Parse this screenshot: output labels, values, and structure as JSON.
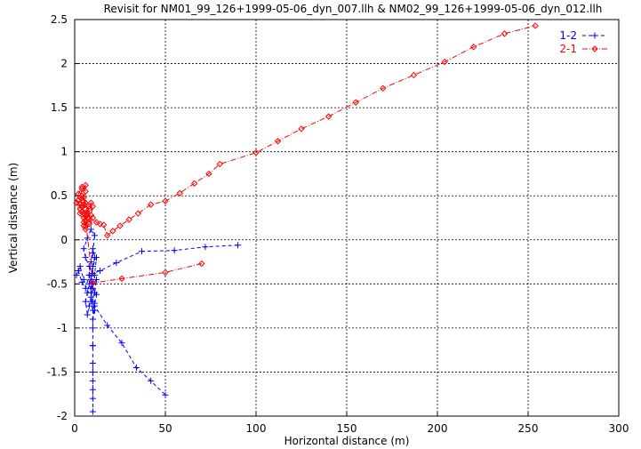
{
  "chart_data": {
    "type": "line",
    "title": "Revisit for NM01_99_126+1999-05-06_dyn_007.llh & NM02_99_126+1999-05-06_dyn_012.llh",
    "xlabel": "Horizontal distance (m)",
    "ylabel": "Vertical distance (m)",
    "xlim": [
      0,
      300
    ],
    "ylim": [
      -2,
      2.5
    ],
    "x_ticks": [
      "0",
      "50",
      "100",
      "150",
      "200",
      "250",
      "300"
    ],
    "y_ticks": [
      "-2",
      "-1.5",
      "-1",
      "-0.5",
      "0",
      "0.5",
      "1",
      "1.5",
      "2",
      "2.5"
    ],
    "x_tick_values": [
      0,
      50,
      100,
      150,
      200,
      250,
      300
    ],
    "y_tick_values": [
      -2,
      -1.5,
      -1,
      -0.5,
      0,
      0.5,
      1,
      1.5,
      2,
      2.5
    ],
    "grid": true,
    "legend_position": "top-right",
    "series": [
      {
        "name": "1-2",
        "color": "#0000ff",
        "marker": "plus",
        "line_style": "dashed",
        "points": [
          [
            90,
            -0.06
          ],
          [
            72,
            -0.08
          ],
          [
            55,
            -0.12
          ],
          [
            37,
            -0.13
          ],
          [
            23,
            -0.26
          ],
          [
            14,
            -0.35
          ],
          [
            10,
            -0.38
          ],
          [
            8,
            -0.3
          ],
          [
            6,
            -0.2
          ],
          [
            5,
            -0.1
          ],
          [
            7,
            0.02
          ],
          [
            9,
            0.12
          ],
          [
            11,
            0.05
          ],
          [
            10,
            -0.15
          ],
          [
            8,
            -0.4
          ],
          [
            6,
            -0.55
          ],
          [
            4,
            -0.48
          ],
          [
            2,
            -0.35
          ],
          [
            1,
            -0.4
          ],
          [
            3,
            -0.3
          ],
          [
            5,
            -0.45
          ],
          [
            7,
            -0.6
          ],
          [
            9,
            -0.55
          ],
          [
            11,
            -0.4
          ],
          [
            12,
            -0.2
          ],
          [
            10,
            -0.3
          ],
          [
            8,
            -0.5
          ],
          [
            6,
            -0.7
          ],
          [
            7,
            -0.85
          ],
          [
            8,
            -0.75
          ],
          [
            9,
            -0.65
          ],
          [
            10,
            -0.5
          ],
          [
            12,
            -0.45
          ],
          [
            11,
            -0.6
          ],
          [
            9,
            -0.7
          ],
          [
            10,
            -0.8
          ],
          [
            11,
            -0.72
          ],
          [
            12,
            -0.62
          ],
          [
            10,
            -0.55
          ],
          [
            9,
            -0.45
          ],
          [
            10,
            -0.3
          ],
          [
            11,
            -0.2
          ],
          [
            10,
            -0.1
          ],
          [
            9,
            -0.25
          ],
          [
            8,
            -0.4
          ],
          [
            9,
            -0.6
          ],
          [
            10,
            -0.7
          ],
          [
            11,
            -0.8
          ],
          [
            10,
            -0.9
          ],
          [
            10,
            -1.0
          ],
          [
            10,
            -1.2
          ],
          [
            10,
            -1.4
          ],
          [
            10,
            -1.6
          ],
          [
            10,
            -1.8
          ],
          [
            10,
            -1.95
          ],
          [
            10,
            -1.7
          ],
          [
            10,
            -1.5
          ],
          [
            10,
            -1.2
          ],
          [
            10,
            -0.9
          ],
          [
            11,
            -0.75
          ],
          [
            18,
            -0.97
          ],
          [
            26,
            -1.17
          ],
          [
            34,
            -1.45
          ],
          [
            42,
            -1.6
          ],
          [
            50,
            -1.76
          ]
        ]
      },
      {
        "name": "2-1",
        "color": "#ff0000",
        "marker": "diamond",
        "line_style": "dash-dot",
        "points": [
          [
            70,
            -0.27
          ],
          [
            50,
            -0.37
          ],
          [
            26,
            -0.44
          ],
          [
            10,
            -0.49
          ],
          [
            5,
            0.4
          ],
          [
            3,
            0.35
          ],
          [
            2,
            0.45
          ],
          [
            4,
            0.5
          ],
          [
            6,
            0.42
          ],
          [
            8,
            0.38
          ],
          [
            7,
            0.3
          ],
          [
            5,
            0.25
          ],
          [
            4,
            0.32
          ],
          [
            3,
            0.4
          ],
          [
            5,
            0.48
          ],
          [
            6,
            0.55
          ],
          [
            4,
            0.6
          ],
          [
            2,
            0.52
          ],
          [
            1,
            0.42
          ],
          [
            3,
            0.3
          ],
          [
            5,
            0.2
          ],
          [
            6,
            0.15
          ],
          [
            7,
            0.25
          ],
          [
            8,
            0.35
          ],
          [
            9,
            0.42
          ],
          [
            10,
            0.38
          ],
          [
            9,
            0.28
          ],
          [
            8,
            0.2
          ],
          [
            7,
            0.28
          ],
          [
            6,
            0.35
          ],
          [
            5,
            0.44
          ],
          [
            6,
            0.62
          ],
          [
            4,
            0.58
          ],
          [
            3,
            0.48
          ],
          [
            4,
            0.38
          ],
          [
            5,
            0.3
          ],
          [
            6,
            0.22
          ],
          [
            5,
            0.16
          ],
          [
            6,
            0.12
          ],
          [
            8,
            0.18
          ],
          [
            10,
            0.25
          ],
          [
            12,
            0.2
          ],
          [
            14,
            0.18
          ],
          [
            16,
            0.17
          ],
          [
            18,
            0.05
          ],
          [
            21,
            0.1
          ],
          [
            25,
            0.16
          ],
          [
            30,
            0.23
          ],
          [
            35,
            0.3
          ],
          [
            42,
            0.4
          ],
          [
            50,
            0.44
          ],
          [
            58,
            0.53
          ],
          [
            66,
            0.64
          ],
          [
            74,
            0.75
          ],
          [
            80,
            0.86
          ],
          [
            100,
            0.99
          ],
          [
            112,
            1.12
          ],
          [
            125,
            1.26
          ],
          [
            140,
            1.4
          ],
          [
            155,
            1.56
          ],
          [
            170,
            1.72
          ],
          [
            187,
            1.87
          ],
          [
            204,
            2.02
          ],
          [
            220,
            2.19
          ],
          [
            237,
            2.34
          ],
          [
            254,
            2.43
          ]
        ]
      }
    ]
  }
}
